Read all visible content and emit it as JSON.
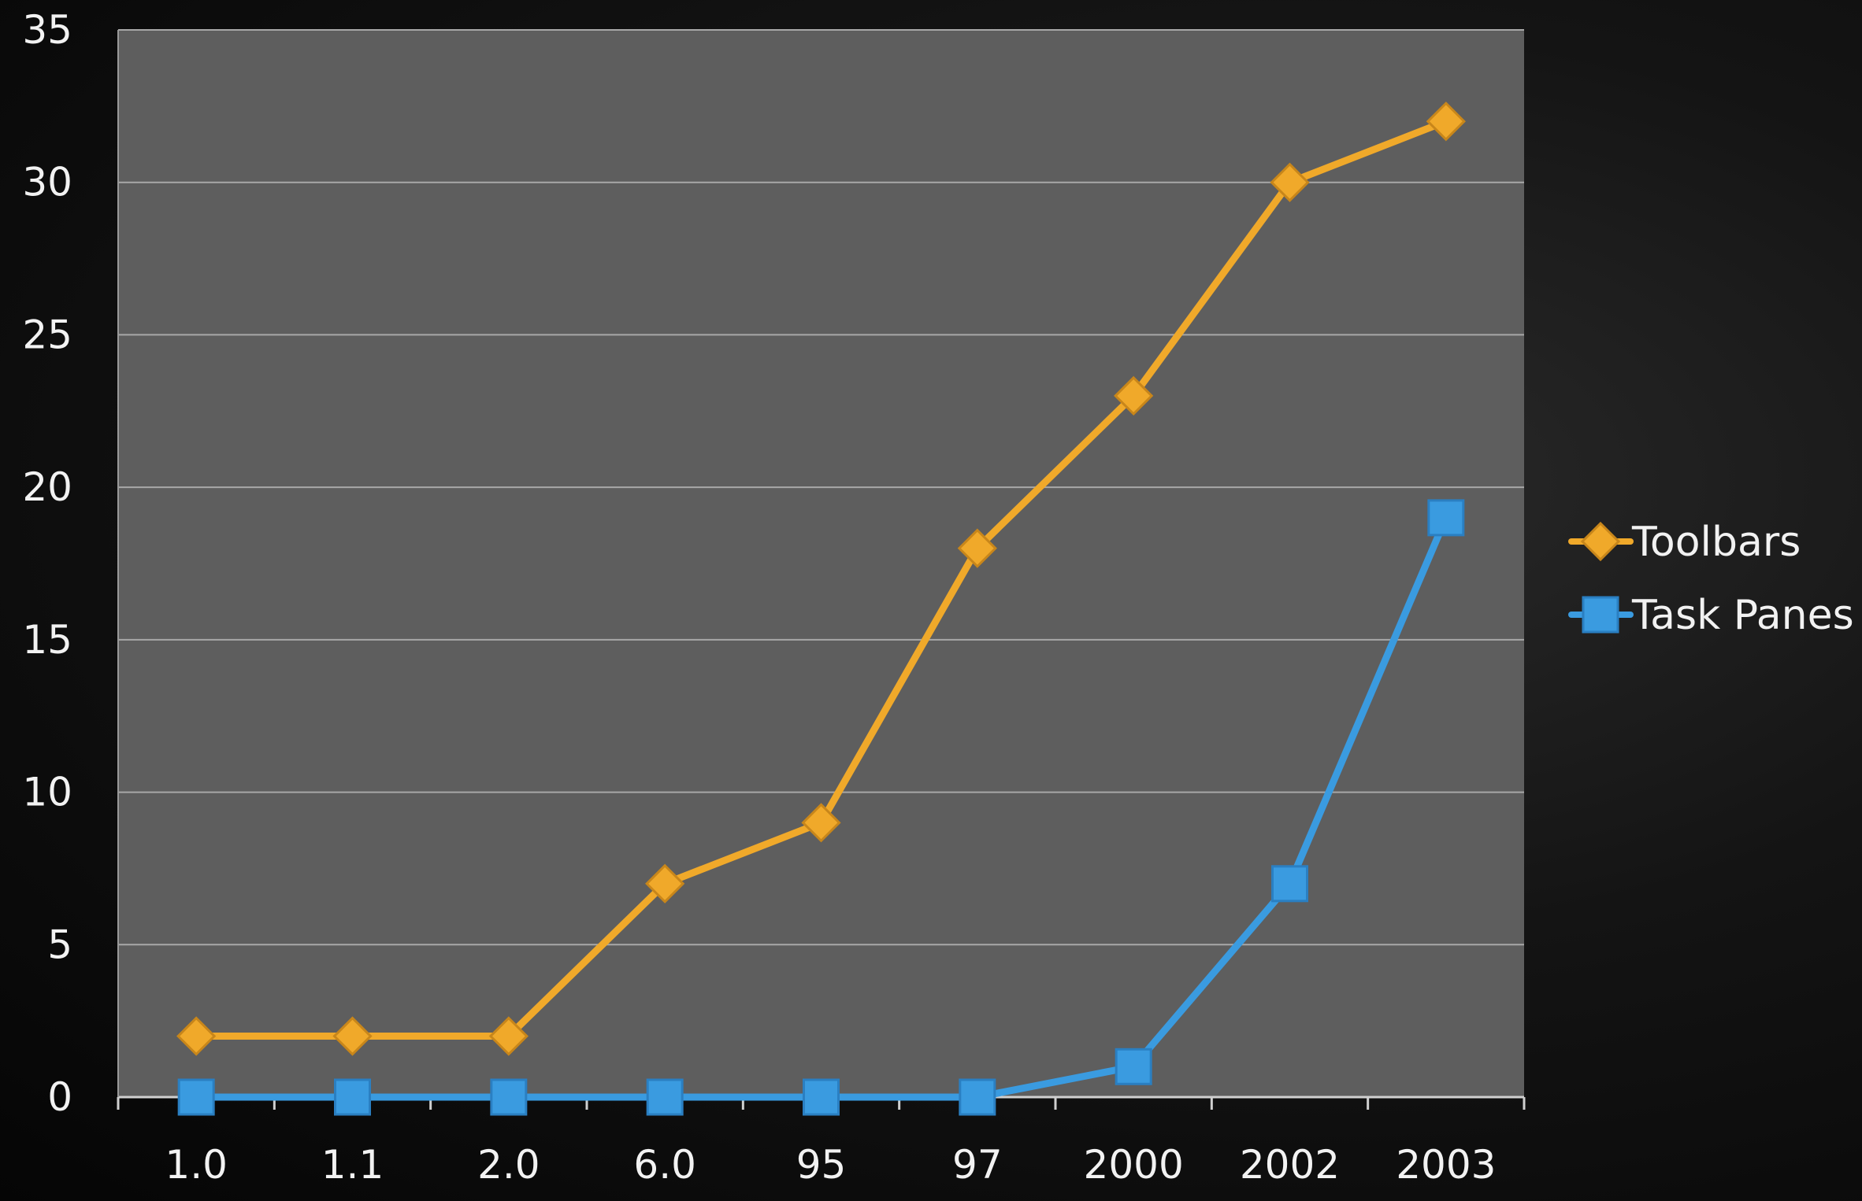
{
  "chart_data": {
    "type": "line",
    "categories": [
      "1.0",
      "1.1",
      "2.0",
      "6.0",
      "95",
      "97",
      "2000",
      "2002",
      "2003"
    ],
    "series": [
      {
        "name": "Toolbars",
        "values": [
          2,
          2,
          2,
          7,
          9,
          18,
          23,
          30,
          32
        ],
        "color": "#f0a92a",
        "marker": "diamond"
      },
      {
        "name": "Task Panes",
        "values": [
          0,
          0,
          0,
          0,
          0,
          0,
          1,
          7,
          19
        ],
        "color": "#3a9be0",
        "marker": "square"
      }
    ],
    "y_ticks": [
      "0",
      "5",
      "10",
      "15",
      "20",
      "25",
      "30",
      "35"
    ],
    "ylim": [
      0,
      35
    ],
    "grid": true,
    "legend_position": "right",
    "plot_background": "#5e5e5e",
    "gridline_color": "#a8a8a8"
  }
}
